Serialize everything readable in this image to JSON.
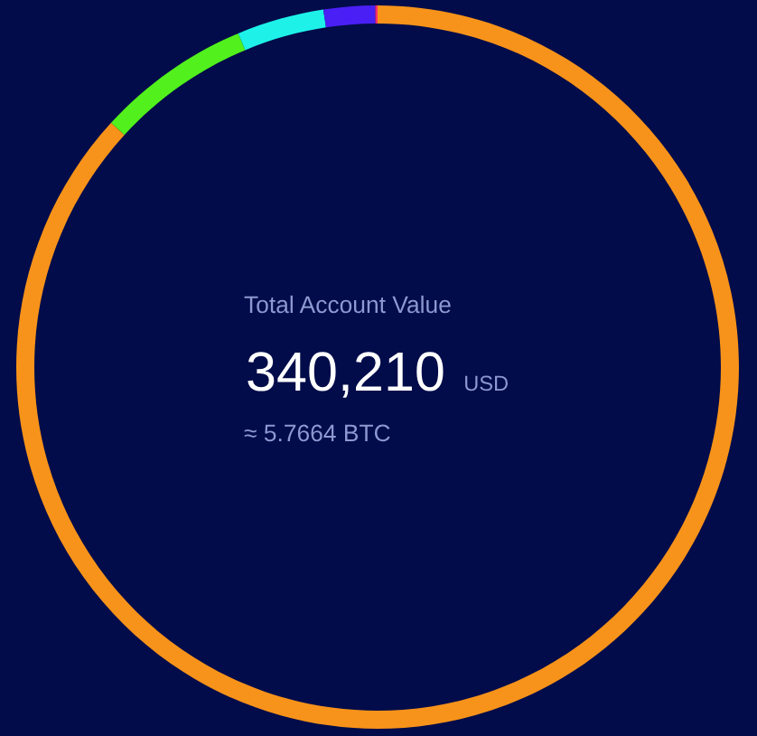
{
  "chart_data": {
    "type": "donut",
    "title": "Total Account Value",
    "categories": [
      null,
      null,
      null,
      null,
      null
    ],
    "values": [
      86.8,
      6.9,
      3.9,
      2.3,
      0.1
    ],
    "colors": [
      "#f7931a",
      "#52f01c",
      "#1ef2e8",
      "#4a1ff5",
      "#ff2d6e"
    ],
    "annotations": [
      "340,210",
      "USD",
      "≈ 5.7664 BTC"
    ]
  }
}
